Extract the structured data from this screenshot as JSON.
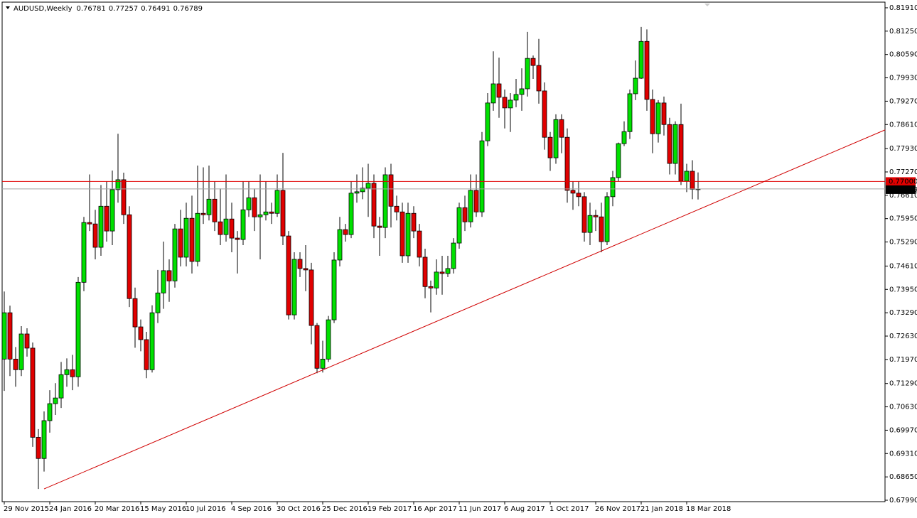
{
  "chart_data": {
    "type": "candlestick",
    "title": "AUDUSD,Weekly",
    "up_color": "#00e000",
    "down_color": "#e00000",
    "categories": [
      "29 Nov 2015",
      null,
      null,
      null,
      null,
      null,
      null,
      null,
      "24 Jan 2016",
      null,
      null,
      null,
      null,
      null,
      null,
      null,
      "20 Mar 2016",
      null,
      null,
      null,
      null,
      null,
      null,
      null,
      "15 May 2016",
      null,
      null,
      null,
      null,
      null,
      null,
      null,
      "10 Jul 2016",
      null,
      null,
      null,
      null,
      null,
      null,
      null,
      "4 Sep 2016",
      null,
      null,
      null,
      null,
      null,
      null,
      null,
      "30 Oct 2016",
      null,
      null,
      null,
      null,
      null,
      null,
      null,
      "25 Dec 2016",
      null,
      null,
      null,
      null,
      null,
      null,
      null,
      "19 Feb 2017",
      null,
      null,
      null,
      null,
      null,
      null,
      null,
      "16 Apr 2017",
      null,
      null,
      null,
      null,
      null,
      null,
      null,
      "11 Jun 2017",
      null,
      null,
      null,
      null,
      null,
      null,
      null,
      "6 Aug 2017",
      null,
      null,
      null,
      null,
      null,
      null,
      null,
      "1 Oct 2017",
      null,
      null,
      null,
      null,
      null,
      null,
      null,
      "26 Nov 2017",
      null,
      null,
      null,
      null,
      null,
      null,
      null,
      "21 Jan 2018",
      null,
      null,
      null,
      null,
      null,
      null,
      null,
      "18 Mar 2018",
      null,
      null
    ],
    "open": [
      0.7198,
      0.7329,
      0.7198,
      0.7168,
      0.7269,
      0.7229,
      0.6977,
      0.6917,
      0.7024,
      0.7072,
      0.7088,
      0.7154,
      0.7168,
      0.7148,
      0.7415,
      0.7584,
      0.758,
      0.7514,
      0.763,
      0.756,
      0.7677,
      0.7705,
      0.7606,
      0.7369,
      0.7289,
      0.7253,
      0.7168,
      0.7329,
      0.7385,
      0.7448,
      0.7419,
      0.7566,
      0.7486,
      0.7596,
      0.7474,
      0.761,
      0.7606,
      0.765,
      0.7586,
      0.755,
      0.7594,
      0.754,
      0.7536,
      0.762,
      0.7654,
      0.76,
      0.7606,
      0.7614,
      0.761,
      0.7675,
      0.7546,
      0.7323,
      0.748,
      0.7454,
      0.745,
      0.7293,
      0.7172,
      0.7198,
      0.7309,
      0.7478,
      0.7564,
      0.755,
      0.7667,
      0.7671,
      0.7681,
      0.7695,
      0.7574,
      0.757,
      0.7719,
      0.763,
      0.7614,
      0.749,
      0.761,
      0.756,
      0.7486,
      0.7403,
      0.7399,
      0.7444,
      0.744,
      0.7454,
      0.7526,
      0.7626,
      0.7586,
      0.7675,
      0.7614,
      0.7815,
      0.7922,
      0.7976,
      0.7938,
      0.7908,
      0.793,
      0.7946,
      0.7962,
      0.8048,
      0.8028,
      0.7956,
      0.7825,
      0.7767,
      0.7875,
      0.7825,
      0.7675,
      0.7667,
      0.7657,
      0.7556,
      0.7604,
      0.76,
      0.753,
      0.7657,
      0.7711,
      0.7807,
      0.7841,
      0.7948,
      0.7992,
      0.8096,
      0.7932,
      0.7835,
      0.7922,
      0.7861,
      0.7751,
      0.7861,
      0.7701,
      0.7729,
      0.76781
    ],
    "high": [
      0.7389,
      0.7349,
      0.7232,
      0.7291,
      0.7285,
      0.7245,
      0.7,
      0.705,
      0.711,
      0.713,
      0.719,
      0.72,
      0.721,
      0.743,
      0.76,
      0.772,
      0.762,
      0.769,
      0.77,
      0.7731,
      0.7835,
      0.7725,
      0.763,
      0.74,
      0.731,
      0.7275,
      0.735,
      0.745,
      0.753,
      0.748,
      0.758,
      0.762,
      0.764,
      0.766,
      0.7745,
      0.774,
      0.7745,
      0.77,
      0.768,
      0.772,
      0.764,
      0.756,
      0.77,
      0.77,
      0.768,
      0.772,
      0.77,
      0.764,
      0.772,
      0.7781,
      0.756,
      0.75,
      0.75,
      0.752,
      0.747,
      0.73,
      0.725,
      0.732,
      0.75,
      0.76,
      0.758,
      0.77,
      0.772,
      0.774,
      0.775,
      0.772,
      0.76,
      0.774,
      0.775,
      0.766,
      0.764,
      0.764,
      0.763,
      0.758,
      0.751,
      0.742,
      0.748,
      0.749,
      0.749,
      0.754,
      0.764,
      0.766,
      0.772,
      0.772,
      0.784,
      0.795,
      0.8068,
      0.805,
      0.796,
      0.795,
      0.799,
      0.802,
      0.8123,
      0.8056,
      0.8103,
      0.798,
      0.784,
      0.789,
      0.789,
      0.785,
      0.77,
      0.77,
      0.767,
      0.764,
      0.762,
      0.764,
      0.767,
      0.773,
      0.781,
      0.787,
      0.796,
      0.8042,
      0.8137,
      0.813,
      0.796,
      0.793,
      0.794,
      0.788,
      0.787,
      0.792,
      0.775,
      0.776,
      0.77257
    ],
    "low": [
      0.7108,
      0.715,
      0.712,
      0.715,
      0.7205,
      0.695,
      0.6831,
      0.688,
      0.699,
      0.704,
      0.706,
      0.712,
      0.711,
      0.712,
      0.739,
      0.756,
      0.748,
      0.749,
      0.753,
      0.752,
      0.764,
      0.758,
      0.7345,
      0.723,
      0.722,
      0.7144,
      0.716,
      0.73,
      0.734,
      0.736,
      0.74,
      0.746,
      0.746,
      0.744,
      0.746,
      0.758,
      0.759,
      0.756,
      0.752,
      0.753,
      0.75,
      0.744,
      0.752,
      0.76,
      0.756,
      0.748,
      0.759,
      0.758,
      0.76,
      0.752,
      0.731,
      0.731,
      0.743,
      0.739,
      0.724,
      0.7158,
      0.716,
      0.719,
      0.73,
      0.746,
      0.753,
      0.754,
      0.764,
      0.765,
      0.76,
      0.754,
      0.749,
      0.754,
      0.757,
      0.759,
      0.747,
      0.747,
      0.754,
      0.746,
      0.737,
      0.733,
      0.738,
      0.738,
      0.743,
      0.744,
      0.751,
      0.756,
      0.757,
      0.76,
      0.76,
      0.78,
      0.79,
      0.788,
      0.785,
      0.784,
      0.791,
      0.79,
      0.794,
      0.799,
      0.792,
      0.779,
      0.773,
      0.775,
      0.778,
      0.764,
      0.762,
      0.763,
      0.753,
      0.752,
      0.756,
      0.75,
      0.752,
      0.763,
      0.77,
      0.78,
      0.782,
      0.793,
      0.799,
      0.79,
      0.778,
      0.781,
      0.783,
      0.772,
      0.772,
      0.769,
      0.767,
      0.765,
      0.76491
    ],
    "close": [
      0.7329,
      0.7198,
      0.7168,
      0.7269,
      0.7229,
      0.6977,
      0.6917,
      0.7024,
      0.7072,
      0.7088,
      0.7154,
      0.7168,
      0.7148,
      0.7415,
      0.7584,
      0.758,
      0.7514,
      0.763,
      0.756,
      0.7677,
      0.7705,
      0.7606,
      0.7369,
      0.7289,
      0.7253,
      0.7168,
      0.7329,
      0.7385,
      0.7448,
      0.7419,
      0.7566,
      0.7486,
      0.7596,
      0.7474,
      0.761,
      0.7606,
      0.765,
      0.7586,
      0.755,
      0.7594,
      0.754,
      0.7536,
      0.762,
      0.7654,
      0.76,
      0.7606,
      0.7614,
      0.761,
      0.7675,
      0.7546,
      0.7323,
      0.748,
      0.7454,
      0.745,
      0.7293,
      0.7172,
      0.7198,
      0.7309,
      0.7478,
      0.7564,
      0.755,
      0.7667,
      0.7671,
      0.7681,
      0.7695,
      0.7574,
      0.757,
      0.7719,
      0.763,
      0.7614,
      0.749,
      0.761,
      0.756,
      0.7486,
      0.7403,
      0.7399,
      0.7444,
      0.744,
      0.7454,
      0.7526,
      0.7626,
      0.7586,
      0.7675,
      0.7614,
      0.7815,
      0.7922,
      0.7976,
      0.7938,
      0.7908,
      0.793,
      0.7946,
      0.7962,
      0.8048,
      0.8028,
      0.7956,
      0.7825,
      0.7767,
      0.7875,
      0.7825,
      0.7675,
      0.7667,
      0.7657,
      0.7556,
      0.7604,
      0.76,
      0.753,
      0.7657,
      0.7711,
      0.7807,
      0.7841,
      0.7948,
      0.7992,
      0.8096,
      0.7932,
      0.7835,
      0.7922,
      0.7861,
      0.7751,
      0.7861,
      0.7701,
      0.7729,
      0.7678,
      0.76789
    ],
    "ylim": [
      0.6795,
      0.8207
    ],
    "yticks": [
      {
        "value": 0.8191,
        "label": "0.81910"
      },
      {
        "value": 0.8125,
        "label": "0.81250"
      },
      {
        "value": 0.8059,
        "label": "0.80590"
      },
      {
        "value": 0.7993,
        "label": "0.79930"
      },
      {
        "value": 0.7927,
        "label": "0.79270"
      },
      {
        "value": 0.7861,
        "label": "0.78610"
      },
      {
        "value": 0.7793,
        "label": "0.77930"
      },
      {
        "value": 0.7727,
        "label": "0.77270"
      },
      {
        "value": 0.7661,
        "label": "0.76610"
      },
      {
        "value": 0.7595,
        "label": "0.75950"
      },
      {
        "value": 0.7529,
        "label": "0.75290"
      },
      {
        "value": 0.7461,
        "label": "0.74610"
      },
      {
        "value": 0.7395,
        "label": "0.73950"
      },
      {
        "value": 0.7329,
        "label": "0.73290"
      },
      {
        "value": 0.7263,
        "label": "0.72630"
      },
      {
        "value": 0.7197,
        "label": "0.71970"
      },
      {
        "value": 0.7129,
        "label": "0.71290"
      },
      {
        "value": 0.7063,
        "label": "0.70630"
      },
      {
        "value": 0.6997,
        "label": "0.69970"
      },
      {
        "value": 0.6931,
        "label": "0.69310"
      },
      {
        "value": 0.6865,
        "label": "0.68650"
      },
      {
        "value": 0.6799,
        "label": "0.67990"
      }
    ],
    "hline": {
      "value": 0.77,
      "label": "0.77000",
      "color": "#e00000"
    },
    "trendline": {
      "x": [
        7,
        154.9
      ],
      "y": [
        0.6831,
        0.7846
      ],
      "color": "#d00000"
    }
  }
}
